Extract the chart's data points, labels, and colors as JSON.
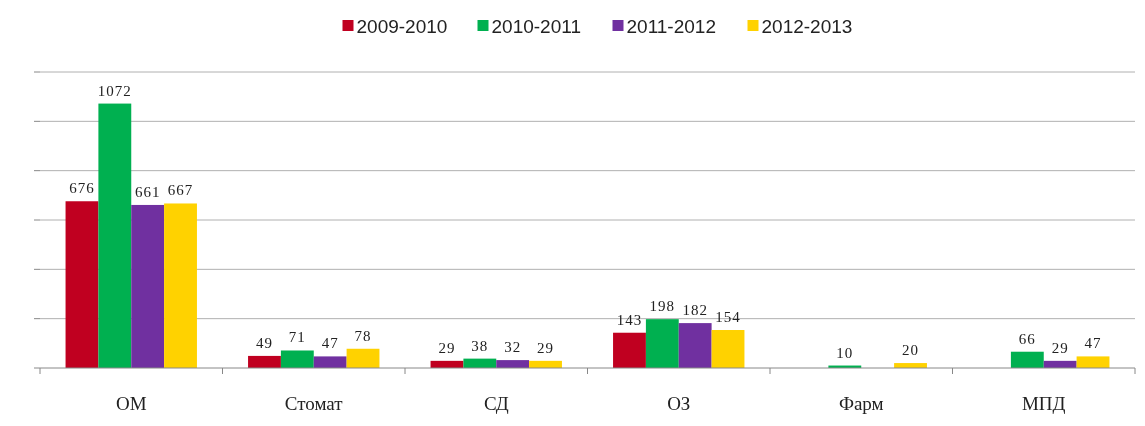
{
  "chart_data": {
    "type": "bar",
    "categories": [
      "ОМ",
      "Стомат",
      "СД",
      "ОЗ",
      "Фарм",
      "МПД"
    ],
    "series": [
      {
        "name": "2009-2010",
        "color": "#c00020",
        "values": [
          676,
          49,
          29,
          143,
          null,
          null
        ]
      },
      {
        "name": "2010-2011",
        "color": "#00b050",
        "values": [
          1072,
          71,
          38,
          198,
          10,
          66
        ]
      },
      {
        "name": "2011-2012",
        "color": "#7030a0",
        "values": [
          661,
          47,
          32,
          182,
          null,
          29
        ]
      },
      {
        "name": "2012-2013",
        "color": "#ffd200",
        "values": [
          667,
          78,
          29,
          154,
          20,
          47
        ]
      }
    ],
    "ylim": [
      0,
      1200
    ],
    "yticks": [
      {
        "value": 0,
        "label": null
      },
      {
        "value": 200,
        "label": null
      },
      {
        "value": 400,
        "label": null
      },
      {
        "value": 600,
        "label": null
      },
      {
        "value": 800,
        "label": null
      },
      {
        "value": 1000,
        "label": null
      },
      {
        "value": 1200,
        "label": null
      }
    ],
    "tick_labels": "x",
    "grid": "y",
    "legend": "top",
    "data_labels": true
  }
}
